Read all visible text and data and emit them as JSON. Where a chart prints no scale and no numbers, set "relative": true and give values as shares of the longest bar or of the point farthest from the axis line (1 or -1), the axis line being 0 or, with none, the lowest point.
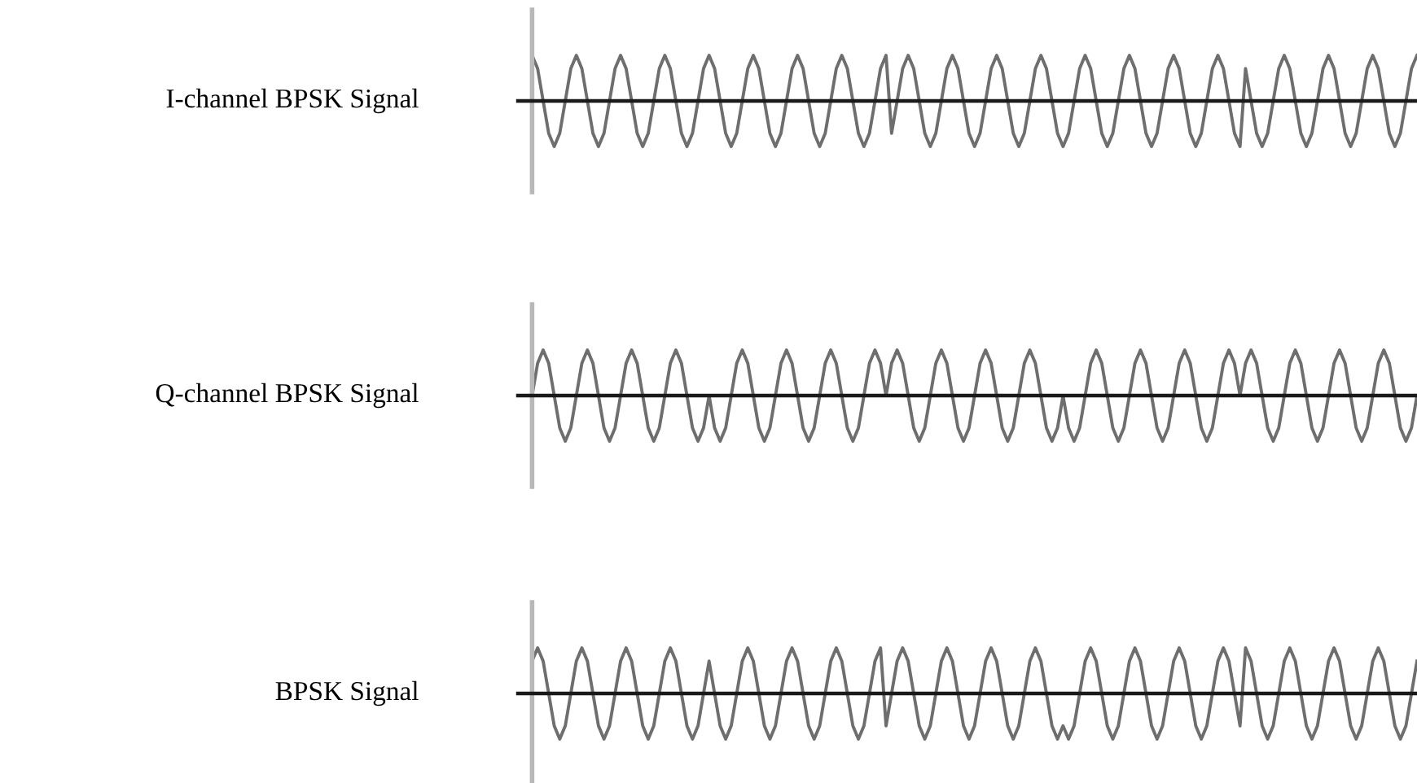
{
  "chart_data": [
    {
      "type": "line",
      "relative": true,
      "ylabel": "I-channel BPSK Signal",
      "tick_labels": false,
      "categories": [
        null,
        null,
        null,
        null,
        null,
        null,
        null,
        null,
        null,
        null,
        null,
        null,
        null,
        null,
        null,
        null,
        null,
        null,
        null,
        null,
        null,
        null,
        null,
        null,
        null,
        null,
        null,
        null,
        null,
        null,
        null,
        null,
        null,
        null,
        null,
        null,
        null,
        null,
        null,
        null,
        null,
        null,
        null,
        null,
        null,
        null,
        null,
        null,
        null,
        null,
        null,
        null,
        null,
        null,
        null,
        null,
        null,
        null,
        null,
        null,
        null,
        null,
        null,
        null,
        null,
        null,
        null,
        null,
        null,
        null,
        null,
        null,
        null,
        null,
        null,
        null,
        null,
        null,
        null,
        null,
        null,
        null,
        null,
        null,
        null,
        null,
        null,
        null,
        null,
        null,
        null,
        null,
        null,
        null,
        null,
        null,
        null,
        null,
        null,
        null,
        null,
        null,
        null,
        null,
        null,
        null,
        null,
        null,
        null,
        null,
        null,
        null,
        null,
        null,
        null,
        null,
        null,
        null,
        null,
        null,
        null,
        null,
        null,
        null,
        null,
        null,
        null,
        null,
        null,
        null,
        null,
        null,
        null,
        null,
        null,
        null,
        null,
        null,
        null,
        null,
        null,
        null,
        null,
        null,
        null,
        null,
        null,
        null,
        null,
        null,
        null,
        null,
        null,
        null,
        null,
        null,
        null,
        null,
        null,
        null,
        null
      ],
      "series": [
        {
          "color": "#6e6e6e",
          "values": [
            1,
            0.71,
            0,
            -0.71,
            -1,
            -0.71,
            0,
            0.71,
            1,
            0.71,
            0,
            -0.71,
            -1,
            -0.71,
            0,
            0.71,
            1,
            0.71,
            0,
            -0.71,
            -1,
            -0.71,
            0,
            0.71,
            1,
            0.71,
            0,
            -0.71,
            -1,
            -0.71,
            0,
            0.71,
            1,
            0.71,
            0,
            -0.71,
            -1,
            -0.71,
            0,
            0.71,
            1,
            0.71,
            0,
            -0.71,
            -1,
            -0.71,
            0,
            0.71,
            1,
            0.71,
            0,
            -0.71,
            -1,
            -0.71,
            0,
            0.71,
            1,
            0.71,
            0,
            -0.71,
            -1,
            -0.71,
            0,
            0.71,
            1,
            -0.71,
            0,
            0.71,
            1,
            0.71,
            0,
            -0.71,
            -1,
            -0.71,
            0,
            0.71,
            1,
            0.71,
            0,
            -0.71,
            -1,
            -0.71,
            0,
            0.71,
            1,
            0.71,
            0,
            -0.71,
            -1,
            -0.71,
            0,
            0.71,
            1,
            0.71,
            0,
            -0.71,
            -1,
            -0.71,
            0,
            0.71,
            1,
            0.71,
            0,
            -0.71,
            -1,
            -0.71,
            0,
            0.71,
            1,
            0.71,
            0,
            -0.71,
            -1,
            -0.71,
            0,
            0.71,
            1,
            0.71,
            0,
            -0.71,
            -1,
            -0.71,
            0,
            0.71,
            1,
            0.71,
            0,
            -0.71,
            -1,
            0.71,
            0,
            -0.71,
            -1,
            -0.71,
            0,
            0.71,
            1,
            0.71,
            0,
            -0.71,
            -1,
            -0.71,
            0,
            0.71,
            1,
            0.71,
            0,
            -0.71,
            -1,
            -0.71,
            0,
            0.71,
            1,
            0.71,
            0,
            -0.71,
            -1,
            -0.71,
            0,
            0.71,
            1
          ]
        }
      ]
    },
    {
      "type": "line",
      "relative": true,
      "ylabel": "Q-channel BPSK Signal",
      "tick_labels": false,
      "categories": [
        null,
        null,
        null,
        null,
        null,
        null,
        null,
        null,
        null,
        null,
        null,
        null,
        null,
        null,
        null,
        null,
        null,
        null,
        null,
        null,
        null,
        null,
        null,
        null,
        null,
        null,
        null,
        null,
        null,
        null,
        null,
        null,
        null,
        null,
        null,
        null,
        null,
        null,
        null,
        null,
        null,
        null,
        null,
        null,
        null,
        null,
        null,
        null,
        null,
        null,
        null,
        null,
        null,
        null,
        null,
        null,
        null,
        null,
        null,
        null,
        null,
        null,
        null,
        null,
        null,
        null,
        null,
        null,
        null,
        null,
        null,
        null,
        null,
        null,
        null,
        null,
        null,
        null,
        null,
        null,
        null,
        null,
        null,
        null,
        null,
        null,
        null,
        null,
        null,
        null,
        null,
        null,
        null,
        null,
        null,
        null,
        null,
        null,
        null,
        null,
        null,
        null,
        null,
        null,
        null,
        null,
        null,
        null,
        null,
        null,
        null,
        null,
        null,
        null,
        null,
        null,
        null,
        null,
        null,
        null,
        null,
        null,
        null,
        null,
        null,
        null,
        null,
        null,
        null,
        null,
        null,
        null,
        null,
        null,
        null,
        null,
        null,
        null,
        null,
        null,
        null,
        null,
        null,
        null,
        null,
        null,
        null,
        null,
        null,
        null,
        null,
        null,
        null,
        null,
        null,
        null,
        null,
        null,
        null,
        null,
        null
      ],
      "series": [
        {
          "color": "#6e6e6e",
          "values": [
            0,
            0.71,
            1,
            0.71,
            0,
            -0.71,
            -1,
            -0.71,
            0,
            0.71,
            1,
            0.71,
            0,
            -0.71,
            -1,
            -0.71,
            0,
            0.71,
            1,
            0.71,
            0,
            -0.71,
            -1,
            -0.71,
            0,
            0.71,
            1,
            0.71,
            0,
            -0.71,
            -1,
            -0.71,
            0,
            -0.71,
            -1,
            -0.71,
            0,
            0.71,
            1,
            0.71,
            0,
            -0.71,
            -1,
            -0.71,
            0,
            0.71,
            1,
            0.71,
            0,
            -0.71,
            -1,
            -0.71,
            0,
            0.71,
            1,
            0.71,
            0,
            -0.71,
            -1,
            -0.71,
            0,
            0.71,
            1,
            0.71,
            0,
            0.71,
            1,
            0.71,
            0,
            -0.71,
            -1,
            -0.71,
            0,
            0.71,
            1,
            0.71,
            0,
            -0.71,
            -1,
            -0.71,
            0,
            0.71,
            1,
            0.71,
            0,
            -0.71,
            -1,
            -0.71,
            0,
            0.71,
            1,
            0.71,
            0,
            -0.71,
            -1,
            -0.71,
            0,
            -0.71,
            -1,
            -0.71,
            0,
            0.71,
            1,
            0.71,
            0,
            -0.71,
            -1,
            -0.71,
            0,
            0.71,
            1,
            0.71,
            0,
            -0.71,
            -1,
            -0.71,
            0,
            0.71,
            1,
            0.71,
            0,
            -0.71,
            -1,
            -0.71,
            0,
            0.71,
            1,
            0.71,
            0,
            0.71,
            1,
            0.71,
            0,
            -0.71,
            -1,
            -0.71,
            0,
            0.71,
            1,
            0.71,
            0,
            -0.71,
            -1,
            -0.71,
            0,
            0.71,
            1,
            0.71,
            0,
            -0.71,
            -1,
            -0.71,
            0,
            0.71,
            1,
            0.71,
            0,
            -0.71,
            -1,
            -0.71,
            0
          ]
        }
      ]
    },
    {
      "type": "line",
      "relative": true,
      "ylabel": "BPSK Signal",
      "tick_labels": false,
      "categories": [
        null,
        null,
        null,
        null,
        null,
        null,
        null,
        null,
        null,
        null,
        null,
        null,
        null,
        null,
        null,
        null,
        null,
        null,
        null,
        null,
        null,
        null,
        null,
        null,
        null,
        null,
        null,
        null,
        null,
        null,
        null,
        null,
        null,
        null,
        null,
        null,
        null,
        null,
        null,
        null,
        null,
        null,
        null,
        null,
        null,
        null,
        null,
        null,
        null,
        null,
        null,
        null,
        null,
        null,
        null,
        null,
        null,
        null,
        null,
        null,
        null,
        null,
        null,
        null,
        null,
        null,
        null,
        null,
        null,
        null,
        null,
        null,
        null,
        null,
        null,
        null,
        null,
        null,
        null,
        null,
        null,
        null,
        null,
        null,
        null,
        null,
        null,
        null,
        null,
        null,
        null,
        null,
        null,
        null,
        null,
        null,
        null,
        null,
        null,
        null,
        null,
        null,
        null,
        null,
        null,
        null,
        null,
        null,
        null,
        null,
        null,
        null,
        null,
        null,
        null,
        null,
        null,
        null,
        null,
        null,
        null,
        null,
        null,
        null,
        null,
        null,
        null,
        null,
        null,
        null,
        null,
        null,
        null,
        null,
        null,
        null,
        null,
        null,
        null,
        null,
        null,
        null,
        null,
        null,
        null,
        null,
        null,
        null,
        null,
        null,
        null,
        null,
        null,
        null,
        null,
        null,
        null,
        null,
        null,
        null,
        null
      ],
      "series": [
        {
          "color": "#6e6e6e",
          "values": [
            0.71,
            1,
            0.71,
            0,
            -0.71,
            -1,
            -0.71,
            0,
            0.71,
            1,
            0.71,
            0,
            -0.71,
            -1,
            -0.71,
            0,
            0.71,
            1,
            0.71,
            0,
            -0.71,
            -1,
            -0.71,
            0,
            0.71,
            1,
            0.71,
            0,
            -0.71,
            -1,
            -0.71,
            0,
            0.71,
            0,
            -0.71,
            -1,
            -0.71,
            0,
            0.71,
            1,
            0.71,
            0,
            -0.71,
            -1,
            -0.71,
            0,
            0.71,
            1,
            0.71,
            0,
            -0.71,
            -1,
            -0.71,
            0,
            0.71,
            1,
            0.71,
            0,
            -0.71,
            -1,
            -0.71,
            0,
            0.71,
            1,
            -0.71,
            0,
            0.71,
            1,
            0.71,
            0,
            -0.71,
            -1,
            -0.71,
            0,
            0.71,
            1,
            0.71,
            0,
            -0.71,
            -1,
            -0.71,
            0,
            0.71,
            1,
            0.71,
            0,
            -0.71,
            -1,
            -0.71,
            0,
            0.71,
            1,
            0.71,
            0,
            -0.71,
            -1,
            -0.71,
            -1,
            -0.71,
            0,
            0.71,
            1,
            0.71,
            0,
            -0.71,
            -1,
            -0.71,
            0,
            0.71,
            1,
            0.71,
            0,
            -0.71,
            -1,
            -0.71,
            0,
            0.71,
            1,
            0.71,
            0,
            -0.71,
            -1,
            -0.71,
            0,
            0.71,
            1,
            0.71,
            0,
            -0.71,
            1,
            0.71,
            0,
            -0.71,
            -1,
            -0.71,
            0,
            0.71,
            1,
            0.71,
            0,
            -0.71,
            -1,
            -0.71,
            0,
            0.71,
            1,
            0.71,
            0,
            -0.71,
            -1,
            -0.71,
            0,
            0.71,
            1,
            0.71,
            0,
            -0.71,
            -1,
            -0.71,
            0,
            0.71
          ]
        }
      ]
    }
  ]
}
